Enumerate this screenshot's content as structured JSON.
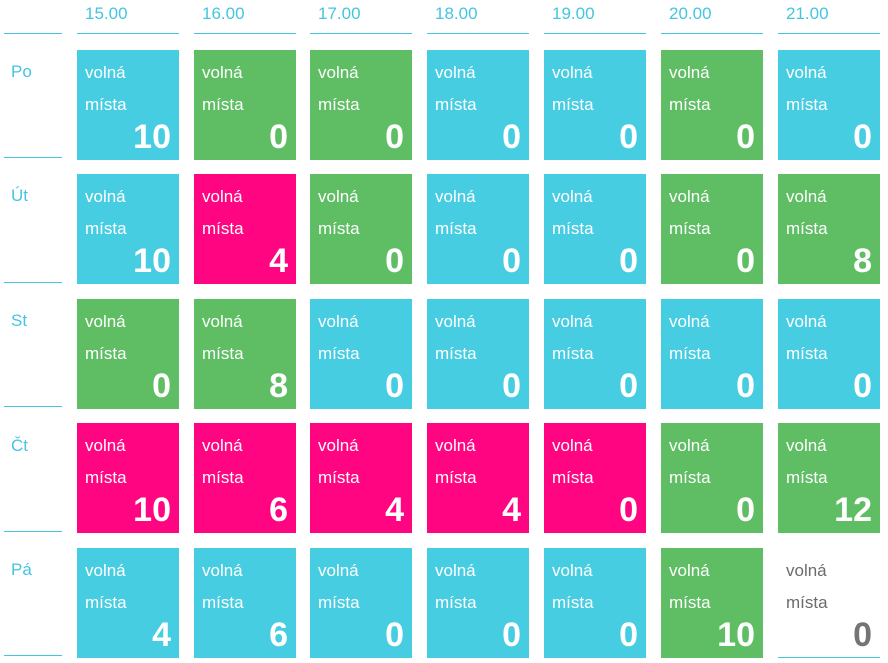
{
  "times": [
    "15.00",
    "16.00",
    "17.00",
    "18.00",
    "19.00",
    "20.00",
    "21.00"
  ],
  "cell_label_line1": "volná",
  "cell_label_line2": "místa",
  "colors": {
    "cyan": "#47cde2",
    "green": "#5fbe64",
    "pink": "#ff0582",
    "empty": "#ffffff",
    "header_text": "#45c5df"
  },
  "days": [
    {
      "label": "Po",
      "slots": [
        {
          "count": "10",
          "color": "cyan"
        },
        {
          "count": "0",
          "color": "green"
        },
        {
          "count": "0",
          "color": "green"
        },
        {
          "count": "0",
          "color": "cyan"
        },
        {
          "count": "0",
          "color": "cyan"
        },
        {
          "count": "0",
          "color": "green"
        },
        {
          "count": "0",
          "color": "cyan"
        }
      ]
    },
    {
      "label": "Út",
      "slots": [
        {
          "count": "10",
          "color": "cyan"
        },
        {
          "count": "4",
          "color": "pink"
        },
        {
          "count": "0",
          "color": "green"
        },
        {
          "count": "0",
          "color": "cyan"
        },
        {
          "count": "0",
          "color": "cyan"
        },
        {
          "count": "0",
          "color": "green"
        },
        {
          "count": "8",
          "color": "green"
        }
      ]
    },
    {
      "label": "St",
      "slots": [
        {
          "count": "0",
          "color": "green"
        },
        {
          "count": "8",
          "color": "green"
        },
        {
          "count": "0",
          "color": "cyan"
        },
        {
          "count": "0",
          "color": "cyan"
        },
        {
          "count": "0",
          "color": "cyan"
        },
        {
          "count": "0",
          "color": "cyan"
        },
        {
          "count": "0",
          "color": "cyan"
        }
      ]
    },
    {
      "label": "Čt",
      "slots": [
        {
          "count": "10",
          "color": "pink"
        },
        {
          "count": "6",
          "color": "pink"
        },
        {
          "count": "4",
          "color": "pink"
        },
        {
          "count": "4",
          "color": "pink"
        },
        {
          "count": "0",
          "color": "pink"
        },
        {
          "count": "0",
          "color": "green"
        },
        {
          "count": "12",
          "color": "green"
        }
      ]
    },
    {
      "label": "Pá",
      "slots": [
        {
          "count": "4",
          "color": "cyan"
        },
        {
          "count": "6",
          "color": "cyan"
        },
        {
          "count": "0",
          "color": "cyan"
        },
        {
          "count": "0",
          "color": "cyan"
        },
        {
          "count": "0",
          "color": "cyan"
        },
        {
          "count": "10",
          "color": "green"
        },
        {
          "count": "0",
          "color": "empty"
        }
      ]
    }
  ]
}
